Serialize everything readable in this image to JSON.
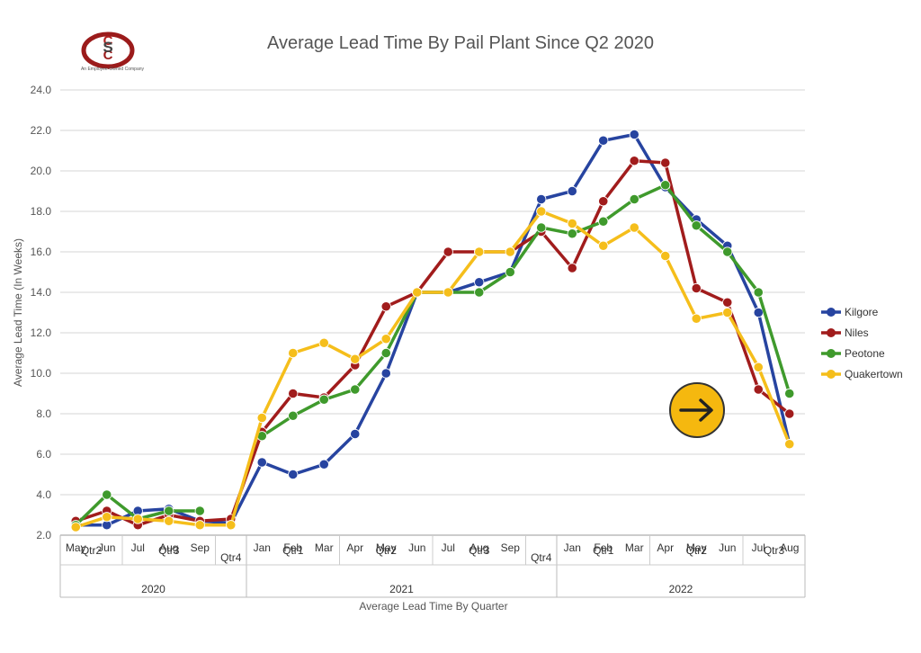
{
  "logo": {
    "letters": "CSC",
    "tagline": "An Employee-Owned Company"
  },
  "chart_data": {
    "type": "line",
    "title": "Average Lead Time By Pail Plant Since Q2 2020",
    "xlabel": "Average Lead Time By Quarter",
    "ylabel": "Average Lead Time (In Weeks)",
    "ylim": [
      2,
      24
    ],
    "yticks": [
      "2.0",
      "4.0",
      "6.0",
      "8.0",
      "10.0",
      "12.0",
      "14.0",
      "16.0",
      "18.0",
      "20.0",
      "22.0",
      "24.0"
    ],
    "grid": true,
    "legend_position": "right",
    "x": [
      "May",
      "Jun",
      "Jul",
      "Aug",
      "Sep",
      "",
      "Jan",
      "Feb",
      "Mar",
      "Apr",
      "May",
      "Jun",
      "Jul",
      "Aug",
      "Sep",
      "",
      "Jan",
      "Feb",
      "Mar",
      "Apr",
      "May",
      "Jun",
      "Jul",
      "Aug"
    ],
    "quarters": [
      {
        "label": "Qtr2",
        "span": 2
      },
      {
        "label": "Qtr3",
        "span": 3
      },
      {
        "label": "Qtr4",
        "span": 1
      },
      {
        "label": "Qtr1",
        "span": 3
      },
      {
        "label": "Qtr2",
        "span": 3
      },
      {
        "label": "Qtr3",
        "span": 3
      },
      {
        "label": "Qtr4",
        "span": 1
      },
      {
        "label": "Qtr1",
        "span": 3
      },
      {
        "label": "Qtr2",
        "span": 3
      },
      {
        "label": "Qtr3",
        "span": 2
      }
    ],
    "years": [
      {
        "label": "2020",
        "span": 6
      },
      {
        "label": "2021",
        "span": 10
      },
      {
        "label": "2022",
        "span": 8
      }
    ],
    "series": [
      {
        "name": "Kilgore",
        "color": "#2744a0",
        "values": [
          2.5,
          2.5,
          3.2,
          3.3,
          2.7,
          2.6,
          5.6,
          5.0,
          5.5,
          7.0,
          10.0,
          14.0,
          14.0,
          14.5,
          15.0,
          18.6,
          19.0,
          21.5,
          21.8,
          19.2,
          17.6,
          16.3,
          13.0,
          6.5
        ]
      },
      {
        "name": "Niles",
        "color": "#a11c1c",
        "values": [
          2.7,
          3.2,
          2.5,
          3.0,
          2.7,
          2.8,
          7.1,
          9.0,
          8.8,
          10.4,
          13.3,
          14.0,
          16.0,
          16.0,
          16.0,
          17.0,
          15.2,
          18.5,
          20.5,
          20.4,
          14.2,
          13.5,
          9.2,
          8.0
        ]
      },
      {
        "name": "Peotone",
        "color": "#3f9a2c",
        "values": [
          2.5,
          4.0,
          2.8,
          3.2,
          3.2,
          null,
          6.9,
          7.9,
          8.7,
          9.2,
          11.0,
          14.0,
          14.0,
          14.0,
          15.0,
          17.2,
          16.9,
          17.5,
          18.6,
          19.3,
          17.3,
          16.0,
          14.0,
          9.0
        ]
      },
      {
        "name": "Quakertown",
        "color": "#f5be1b",
        "values": [
          2.4,
          2.9,
          2.8,
          2.7,
          2.5,
          2.5,
          7.8,
          11.0,
          11.5,
          10.7,
          11.7,
          14.0,
          14.0,
          16.0,
          16.0,
          18.0,
          17.4,
          16.3,
          17.2,
          15.8,
          12.7,
          13.0,
          10.3,
          6.5
        ]
      }
    ]
  },
  "nav": {
    "next_arrow": "next-arrow-icon",
    "button_color": "#f5b80f"
  }
}
